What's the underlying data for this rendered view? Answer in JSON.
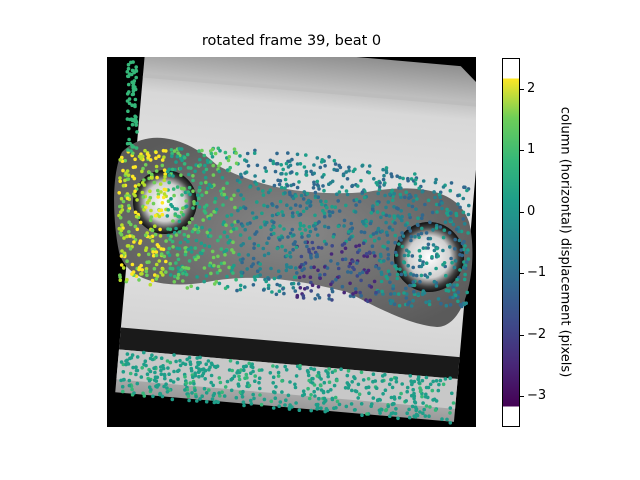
{
  "figure": {
    "title": "rotated frame 39, beat 0",
    "colorbar": {
      "label": "column (horizontal) displacement (pixels)",
      "colormap": "viridis",
      "range": [
        -3.5,
        2.5
      ],
      "ticks": [
        "2",
        "1",
        "0",
        "−1",
        "−2",
        "−3"
      ]
    }
  }
}
